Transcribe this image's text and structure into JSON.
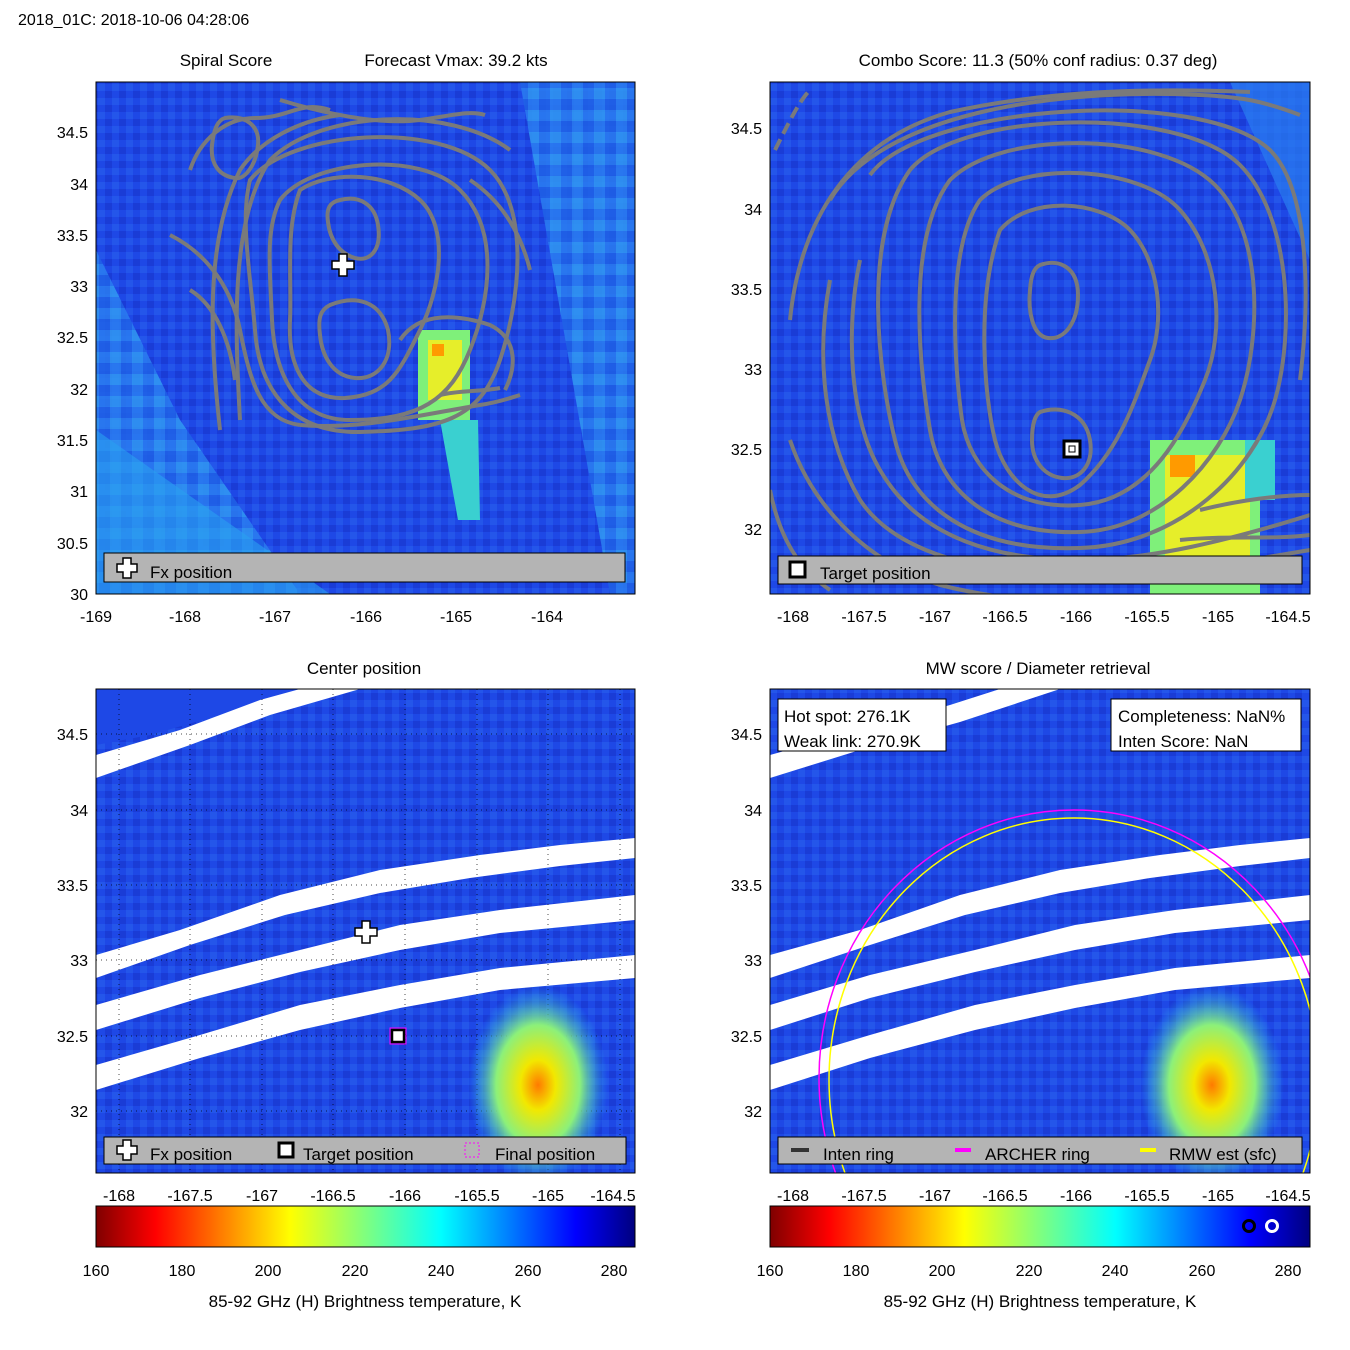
{
  "header": {
    "title": "2018_01C: 2018-10-06 04:28:06"
  },
  "colors": {
    "background_field": "#1c3fe0",
    "contour": "#7a7a7a",
    "legend_bg": "#b4b4b4",
    "inten_ring": "#333333",
    "archer_ring": "#ff00ff",
    "rmw_ring": "#ffff00"
  },
  "panels": [
    {
      "id": "spiral",
      "title_left": "Spiral Score",
      "title_right": "Forecast Vmax: 39.2 kts",
      "legend": [
        {
          "icon": "cross",
          "label": "Fx position"
        }
      ]
    },
    {
      "id": "combo",
      "title": "Combo Score: 11.3  (50% conf radius: 0.37 deg)",
      "legend": [
        {
          "icon": "square",
          "label": "Target position"
        }
      ]
    },
    {
      "id": "center",
      "title": "Center position",
      "legend": [
        {
          "icon": "cross",
          "label": "Fx position"
        },
        {
          "icon": "square",
          "label": "Target position"
        },
        {
          "icon": "dotted-square",
          "label": "Final position"
        }
      ]
    },
    {
      "id": "mw",
      "title": "MW score / Diameter retrieval",
      "info_left": [
        "Hot spot: 276.1K",
        "Weak link: 270.9K"
      ],
      "info_right": [
        "Completeness: NaN%",
        "Inten Score: NaN"
      ],
      "legend": [
        {
          "icon": "line-dark",
          "label": "Inten ring"
        },
        {
          "icon": "line-magenta",
          "label": "ARCHER ring"
        },
        {
          "icon": "line-yellow",
          "label": "RMW est (sfc)"
        }
      ]
    }
  ],
  "colorbars": [
    {
      "label": "85-92 GHz (H) Brightness temperature, K",
      "ticks": [
        160,
        180,
        200,
        220,
        240,
        260,
        280
      ]
    },
    {
      "label": "85-92 GHz (H) Brightness temperature, K",
      "ticks": [
        160,
        180,
        200,
        220,
        240,
        260,
        280
      ]
    }
  ],
  "chart_data": [
    {
      "type": "heatmap",
      "title": "Spiral Score",
      "xlim": [
        -169,
        -163.1
      ],
      "ylim": [
        30,
        35
      ],
      "xticks": [
        -169,
        -168,
        -167,
        -166,
        -165,
        -164
      ],
      "yticks": [
        30,
        30.5,
        31,
        31.5,
        32,
        32.5,
        33,
        33.5,
        34,
        34.5
      ],
      "markers": [
        {
          "name": "Fx position",
          "lon": -166.2,
          "lat": 33.2
        }
      ],
      "hot_spot": {
        "lon": -165.0,
        "lat": 32.3
      }
    },
    {
      "type": "heatmap",
      "title": "Combo Score: 11.3  (50% conf radius: 0.37 deg)",
      "xlim": [
        -168.2,
        -164.4
      ],
      "ylim": [
        31.6,
        34.8
      ],
      "xticks": [
        -168,
        -167.5,
        -167,
        -166.5,
        -166,
        -165.5,
        -165,
        -164.5
      ],
      "yticks": [
        32,
        32.5,
        33,
        33.5,
        34,
        34.5
      ],
      "markers": [
        {
          "name": "Target position",
          "lon": -166.0,
          "lat": 32.5
        }
      ],
      "hot_spot": {
        "lon": -165.0,
        "lat": 32.3
      }
    },
    {
      "type": "heatmap",
      "title": "Center position",
      "xlim": [
        -168.2,
        -164.4
      ],
      "ylim": [
        31.6,
        34.8
      ],
      "xticks": [
        -168,
        -167.5,
        -167,
        -166.5,
        -166,
        -165.5,
        -165,
        -164.5
      ],
      "yticks": [
        32,
        32.5,
        33,
        33.5,
        34,
        34.5
      ],
      "markers": [
        {
          "name": "Fx position",
          "lon": -166.2,
          "lat": 33.2
        },
        {
          "name": "Target position",
          "lon": -166.0,
          "lat": 32.5
        },
        {
          "name": "Final position",
          "lon": -166.0,
          "lat": 32.5
        }
      ],
      "hot_spot": {
        "lon": -165.0,
        "lat": 32.3
      }
    },
    {
      "type": "heatmap",
      "title": "MW score / Diameter retrieval",
      "xlim": [
        -168.2,
        -164.4
      ],
      "ylim": [
        31.6,
        34.8
      ],
      "xticks": [
        -168,
        -167.5,
        -167,
        -166.5,
        -166,
        -165.5,
        -165,
        -164.5
      ],
      "yticks": [
        32,
        32.5,
        33,
        33.5,
        34,
        34.5
      ],
      "hot_spot": {
        "lon": -165.0,
        "lat": 32.3
      },
      "rings": [
        {
          "name": "ARCHER ring",
          "center_lon": -166.0,
          "center_lat": 32.55,
          "radius_deg": 1.75
        },
        {
          "name": "RMW est (sfc)",
          "center_lon": -166.0,
          "center_lat": 32.55,
          "radius_deg": 1.7
        }
      ]
    }
  ]
}
